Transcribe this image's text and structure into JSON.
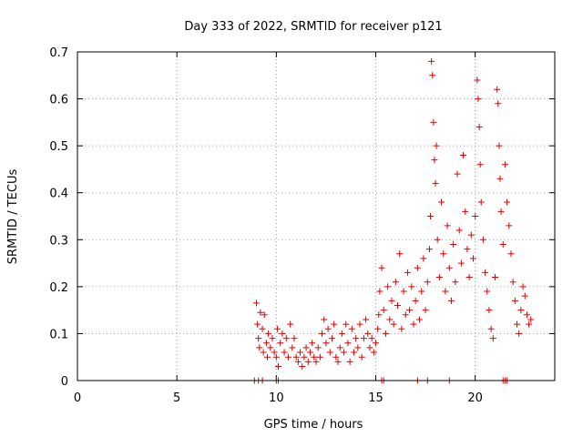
{
  "chart_data": {
    "type": "scatter",
    "title": "Day 333 of 2022, SRMTID for receiver p121",
    "xlabel": "GPS time / hours",
    "ylabel": "SRMTID / TECUs",
    "xlim": [
      0,
      24
    ],
    "ylim": [
      0,
      0.7
    ],
    "xticks": [
      0,
      5,
      10,
      15,
      20
    ],
    "yticks": [
      0,
      0.1,
      0.2,
      0.3,
      0.4,
      0.5,
      0.6,
      0.7
    ],
    "xtick_labels": [
      "0",
      "5",
      "10",
      "15",
      "20"
    ],
    "ytick_labels": [
      "0",
      "0.1",
      "0.2",
      "0.3",
      "0.4",
      "0.5",
      "0.6",
      "0.7"
    ],
    "grid": true,
    "marker": "+",
    "color": "#e00000",
    "series": [
      {
        "name": "SRMTID",
        "points": [
          [
            8.9,
            0.0
          ],
          [
            9.1,
            0.0
          ],
          [
            9.3,
            0.0
          ],
          [
            10.0,
            0.0
          ],
          [
            10.1,
            0.0
          ],
          [
            15.3,
            0.0
          ],
          [
            15.4,
            0.0
          ],
          [
            17.1,
            0.0
          ],
          [
            17.6,
            0.0
          ],
          [
            18.7,
            0.0
          ],
          [
            21.4,
            0.0
          ],
          [
            21.5,
            0.0
          ],
          [
            21.6,
            0.0
          ],
          [
            9.0,
            0.165
          ],
          [
            9.05,
            0.12
          ],
          [
            9.1,
            0.09
          ],
          [
            9.15,
            0.07
          ],
          [
            9.2,
            0.145
          ],
          [
            9.3,
            0.11
          ],
          [
            9.35,
            0.06
          ],
          [
            9.4,
            0.14
          ],
          [
            9.5,
            0.08
          ],
          [
            9.55,
            0.05
          ],
          [
            9.6,
            0.1
          ],
          [
            9.7,
            0.07
          ],
          [
            9.8,
            0.09
          ],
          [
            9.9,
            0.06
          ],
          [
            10.0,
            0.05
          ],
          [
            10.05,
            0.11
          ],
          [
            10.1,
            0.03
          ],
          [
            10.2,
            0.08
          ],
          [
            10.3,
            0.1
          ],
          [
            10.4,
            0.06
          ],
          [
            10.5,
            0.09
          ],
          [
            10.6,
            0.05
          ],
          [
            10.7,
            0.12
          ],
          [
            10.8,
            0.07
          ],
          [
            10.9,
            0.09
          ],
          [
            11.0,
            0.05
          ],
          [
            11.1,
            0.04
          ],
          [
            11.2,
            0.06
          ],
          [
            11.3,
            0.03
          ],
          [
            11.4,
            0.05
          ],
          [
            11.5,
            0.07
          ],
          [
            11.6,
            0.04
          ],
          [
            11.7,
            0.06
          ],
          [
            11.8,
            0.08
          ],
          [
            11.9,
            0.05
          ],
          [
            12.0,
            0.04
          ],
          [
            12.1,
            0.07
          ],
          [
            12.2,
            0.05
          ],
          [
            12.3,
            0.1
          ],
          [
            12.4,
            0.13
          ],
          [
            12.5,
            0.08
          ],
          [
            12.6,
            0.11
          ],
          [
            12.7,
            0.06
          ],
          [
            12.8,
            0.09
          ],
          [
            12.9,
            0.12
          ],
          [
            13.0,
            0.05
          ],
          [
            13.1,
            0.04
          ],
          [
            13.2,
            0.07
          ],
          [
            13.3,
            0.1
          ],
          [
            13.4,
            0.06
          ],
          [
            13.5,
            0.12
          ],
          [
            13.6,
            0.08
          ],
          [
            13.7,
            0.04
          ],
          [
            13.8,
            0.11
          ],
          [
            13.9,
            0.06
          ],
          [
            14.0,
            0.09
          ],
          [
            14.1,
            0.07
          ],
          [
            14.2,
            0.12
          ],
          [
            14.3,
            0.05
          ],
          [
            14.4,
            0.09
          ],
          [
            14.5,
            0.13
          ],
          [
            14.6,
            0.1
          ],
          [
            14.7,
            0.07
          ],
          [
            14.8,
            0.09
          ],
          [
            14.9,
            0.06
          ],
          [
            15.0,
            0.08
          ],
          [
            15.1,
            0.11
          ],
          [
            15.15,
            0.14
          ],
          [
            15.2,
            0.19
          ],
          [
            15.3,
            0.24
          ],
          [
            15.4,
            0.15
          ],
          [
            15.5,
            0.1
          ],
          [
            15.6,
            0.2
          ],
          [
            15.7,
            0.13
          ],
          [
            15.8,
            0.17
          ],
          [
            15.9,
            0.12
          ],
          [
            16.0,
            0.21
          ],
          [
            16.1,
            0.16
          ],
          [
            16.2,
            0.27
          ],
          [
            16.3,
            0.11
          ],
          [
            16.4,
            0.19
          ],
          [
            16.5,
            0.14
          ],
          [
            16.6,
            0.23
          ],
          [
            16.7,
            0.15
          ],
          [
            16.8,
            0.2
          ],
          [
            16.9,
            0.12
          ],
          [
            17.0,
            0.17
          ],
          [
            17.1,
            0.24
          ],
          [
            17.2,
            0.13
          ],
          [
            17.3,
            0.19
          ],
          [
            17.4,
            0.26
          ],
          [
            17.5,
            0.15
          ],
          [
            17.6,
            0.21
          ],
          [
            17.7,
            0.28
          ],
          [
            17.75,
            0.35
          ],
          [
            17.8,
            0.68
          ],
          [
            17.85,
            0.65
          ],
          [
            17.9,
            0.55
          ],
          [
            17.95,
            0.47
          ],
          [
            18.0,
            0.42
          ],
          [
            18.05,
            0.5
          ],
          [
            18.1,
            0.3
          ],
          [
            18.2,
            0.22
          ],
          [
            18.3,
            0.38
          ],
          [
            18.4,
            0.27
          ],
          [
            18.5,
            0.19
          ],
          [
            18.6,
            0.33
          ],
          [
            18.7,
            0.24
          ],
          [
            18.8,
            0.17
          ],
          [
            18.9,
            0.29
          ],
          [
            19.0,
            0.21
          ],
          [
            19.1,
            0.44
          ],
          [
            19.2,
            0.32
          ],
          [
            19.3,
            0.25
          ],
          [
            19.4,
            0.48
          ],
          [
            19.5,
            0.36
          ],
          [
            19.6,
            0.28
          ],
          [
            19.7,
            0.22
          ],
          [
            19.8,
            0.31
          ],
          [
            19.9,
            0.26
          ],
          [
            20.0,
            0.35
          ],
          [
            20.1,
            0.64
          ],
          [
            20.15,
            0.6
          ],
          [
            20.2,
            0.54
          ],
          [
            20.25,
            0.46
          ],
          [
            20.3,
            0.38
          ],
          [
            20.4,
            0.3
          ],
          [
            20.5,
            0.23
          ],
          [
            20.6,
            0.19
          ],
          [
            20.7,
            0.15
          ],
          [
            20.8,
            0.11
          ],
          [
            20.9,
            0.09
          ],
          [
            21.0,
            0.22
          ],
          [
            21.1,
            0.62
          ],
          [
            21.15,
            0.59
          ],
          [
            21.2,
            0.5
          ],
          [
            21.25,
            0.43
          ],
          [
            21.3,
            0.36
          ],
          [
            21.4,
            0.29
          ],
          [
            21.5,
            0.46
          ],
          [
            21.6,
            0.38
          ],
          [
            21.7,
            0.33
          ],
          [
            21.8,
            0.27
          ],
          [
            21.9,
            0.21
          ],
          [
            22.0,
            0.17
          ],
          [
            22.1,
            0.12
          ],
          [
            22.2,
            0.1
          ],
          [
            22.3,
            0.15
          ],
          [
            22.4,
            0.2
          ],
          [
            22.5,
            0.18
          ],
          [
            22.6,
            0.14
          ],
          [
            22.7,
            0.12
          ],
          [
            22.8,
            0.13
          ]
        ]
      }
    ]
  }
}
